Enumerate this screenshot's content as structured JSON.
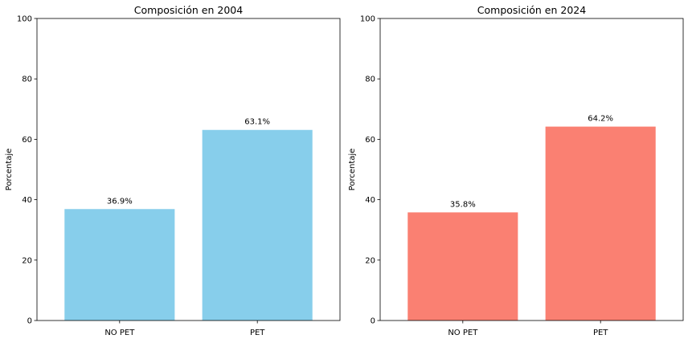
{
  "chart_data": [
    {
      "type": "bar",
      "title": "Composición en 2004",
      "xlabel": "",
      "ylabel": "Porcentaje",
      "ylim": [
        0,
        100
      ],
      "yticks": [
        0,
        20,
        40,
        60,
        80,
        100
      ],
      "categories": [
        "NO PET",
        "PET"
      ],
      "values": [
        36.9,
        63.1
      ],
      "data_labels": [
        "36.9%",
        "63.1%"
      ],
      "color": "#87CEEB",
      "grid": false
    },
    {
      "type": "bar",
      "title": "Composición en 2024",
      "xlabel": "",
      "ylabel": "Porcentaje",
      "ylim": [
        0,
        100
      ],
      "yticks": [
        0,
        20,
        40,
        60,
        80,
        100
      ],
      "categories": [
        "NO PET",
        "PET"
      ],
      "values": [
        35.8,
        64.2
      ],
      "data_labels": [
        "35.8%",
        "64.2%"
      ],
      "color": "#FA8072",
      "grid": false
    }
  ]
}
